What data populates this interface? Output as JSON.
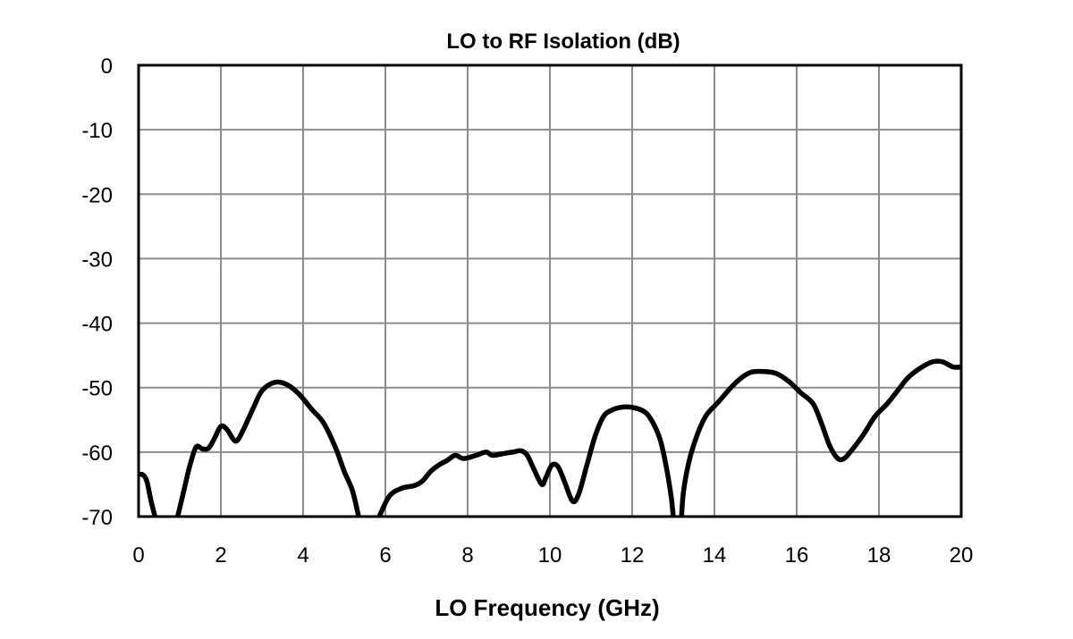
{
  "chart_data": {
    "type": "line",
    "title": "LO to RF Isolation (dB)",
    "xlabel": "LO Frequency (GHz)",
    "ylabel": "",
    "xlim": [
      0,
      20
    ],
    "ylim": [
      -70,
      0
    ],
    "xticks": [
      0,
      2,
      4,
      6,
      8,
      10,
      12,
      14,
      16,
      18,
      20
    ],
    "yticks": [
      0,
      -10,
      -20,
      -30,
      -40,
      -50,
      -60,
      -70
    ],
    "grid": true,
    "legend": "none",
    "series": [
      {
        "color": "#000000",
        "segments": [
          [
            [
              0,
              -63.5
            ],
            [
              0.1,
              -63.5
            ],
            [
              0.2,
              -64.5
            ],
            [
              0.3,
              -67.5
            ],
            [
              0.4,
              -70
            ]
          ],
          [
            [
              0.95,
              -70
            ],
            [
              1.1,
              -66
            ],
            [
              1.25,
              -62
            ],
            [
              1.4,
              -59.2
            ],
            [
              1.55,
              -59.5
            ],
            [
              1.7,
              -59.4
            ],
            [
              1.85,
              -57.8
            ],
            [
              2.0,
              -56
            ],
            [
              2.15,
              -56.5
            ],
            [
              2.3,
              -58
            ],
            [
              2.4,
              -58.2
            ],
            [
              2.55,
              -56.5
            ],
            [
              2.8,
              -53
            ],
            [
              3.0,
              -50.5
            ],
            [
              3.3,
              -49.2
            ],
            [
              3.6,
              -49.5
            ],
            [
              3.9,
              -51
            ],
            [
              4.2,
              -53.3
            ],
            [
              4.5,
              -55.5
            ],
            [
              4.8,
              -59.5
            ],
            [
              5.0,
              -63
            ],
            [
              5.2,
              -66
            ],
            [
              5.35,
              -70
            ]
          ],
          [
            [
              5.85,
              -70
            ],
            [
              6.1,
              -66.8
            ],
            [
              6.4,
              -65.6
            ],
            [
              6.7,
              -65.2
            ],
            [
              6.9,
              -64.5
            ],
            [
              7.1,
              -63
            ],
            [
              7.3,
              -62
            ],
            [
              7.5,
              -61.3
            ],
            [
              7.7,
              -60.5
            ],
            [
              7.9,
              -61
            ],
            [
              8.2,
              -60.5
            ],
            [
              8.45,
              -60
            ],
            [
              8.6,
              -60.5
            ],
            [
              8.9,
              -60.2
            ],
            [
              9.1,
              -60
            ],
            [
              9.3,
              -59.8
            ],
            [
              9.45,
              -60.5
            ],
            [
              9.6,
              -62.5
            ],
            [
              9.8,
              -65
            ],
            [
              9.9,
              -64
            ],
            [
              10.05,
              -62
            ],
            [
              10.2,
              -62.3
            ],
            [
              10.35,
              -64.5
            ],
            [
              10.55,
              -67.6
            ],
            [
              10.7,
              -66.5
            ],
            [
              10.9,
              -62
            ],
            [
              11.1,
              -57.5
            ],
            [
              11.3,
              -54.5
            ],
            [
              11.5,
              -53.5
            ],
            [
              11.8,
              -53
            ],
            [
              12.1,
              -53.2
            ],
            [
              12.35,
              -54
            ],
            [
              12.55,
              -56
            ],
            [
              12.7,
              -58.5
            ],
            [
              12.85,
              -63
            ],
            [
              12.95,
              -67
            ],
            [
              13.0,
              -70
            ]
          ],
          [
            [
              13.2,
              -70
            ],
            [
              13.25,
              -66
            ],
            [
              13.4,
              -61
            ],
            [
              13.6,
              -57
            ],
            [
              13.8,
              -54.3
            ],
            [
              14.1,
              -52.2
            ],
            [
              14.4,
              -50
            ],
            [
              14.65,
              -48.5
            ],
            [
              14.9,
              -47.6
            ],
            [
              15.2,
              -47.5
            ],
            [
              15.5,
              -47.8
            ],
            [
              15.8,
              -49
            ],
            [
              16.1,
              -50.8
            ],
            [
              16.4,
              -52.5
            ],
            [
              16.6,
              -55.5
            ],
            [
              16.8,
              -59
            ],
            [
              17.0,
              -61
            ],
            [
              17.15,
              -61
            ],
            [
              17.3,
              -60
            ],
            [
              17.6,
              -57.5
            ],
            [
              17.9,
              -54.5
            ],
            [
              18.2,
              -52.5
            ],
            [
              18.45,
              -50.5
            ],
            [
              18.7,
              -48.5
            ],
            [
              19.0,
              -47
            ],
            [
              19.3,
              -46
            ],
            [
              19.55,
              -46
            ],
            [
              19.8,
              -46.8
            ],
            [
              20.0,
              -46.8
            ]
          ]
        ]
      }
    ]
  }
}
